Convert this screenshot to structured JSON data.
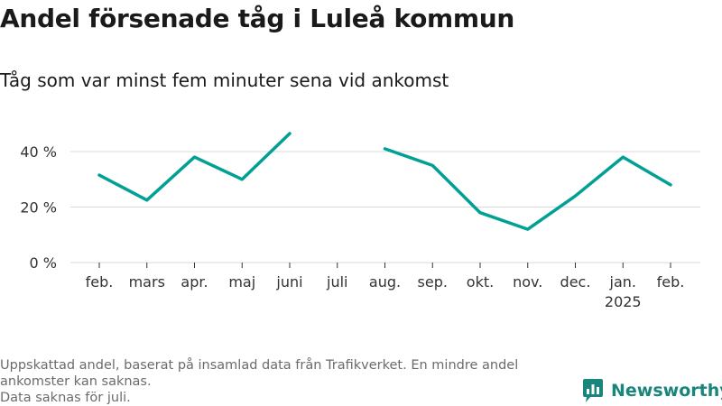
{
  "header": {
    "title": "Andel försenade tåg i Luleå kommun",
    "subtitle": "Tåg som var minst fem minuter sena vid ankomst"
  },
  "chart_data": {
    "type": "line",
    "title": "Andel försenade tåg i Luleå kommun",
    "subtitle": "Tåg som var minst fem minuter sena vid ankomst",
    "xlabel": "",
    "ylabel": "",
    "categories": [
      "feb.",
      "mars",
      "apr.",
      "maj",
      "juni",
      "juli",
      "aug.",
      "sep.",
      "okt.",
      "nov.",
      "dec.",
      "jan.",
      "feb."
    ],
    "year_labels": [
      "",
      "",
      "",
      "",
      "",
      "",
      "",
      "",
      "",
      "",
      "",
      "2025",
      ""
    ],
    "series": [
      {
        "values": [
          31.5,
          22.5,
          38,
          30,
          46.5,
          null,
          41,
          35,
          18,
          12,
          24,
          38,
          28
        ]
      }
    ],
    "yticks": [
      0,
      20,
      40
    ],
    "ytick_labels": [
      "0 %",
      "20 %",
      "40 %"
    ],
    "ylim": [
      0,
      50
    ],
    "grid": true,
    "legend": "none",
    "color": "#00a095"
  },
  "footnote": {
    "lines": [
      "Uppskattad andel, baserat på insamlad data från Trafikverket. En mindre andel",
      "ankomster kan saknas.",
      "Data saknas för juli."
    ]
  },
  "brand": {
    "name": "Newsworthy",
    "icon": "newsworthy-logo-icon",
    "color": "#19867c"
  }
}
